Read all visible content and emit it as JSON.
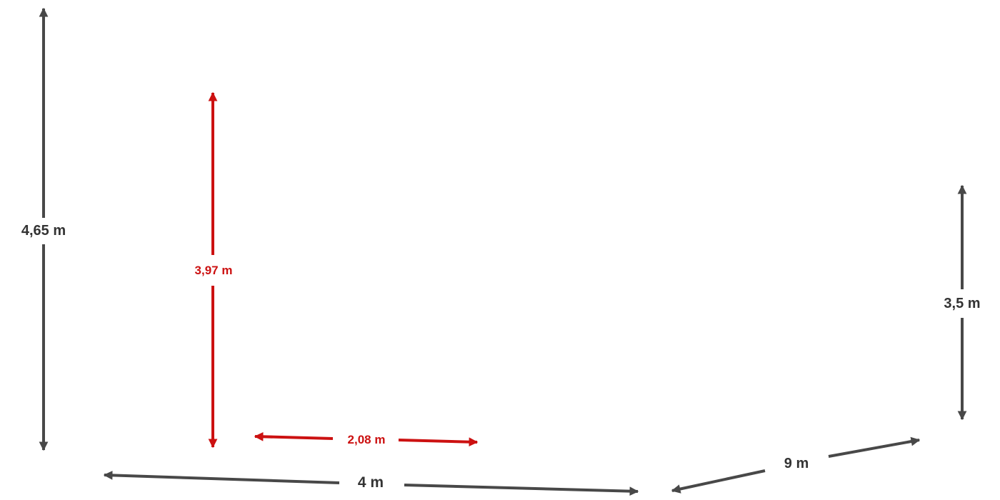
{
  "colors": {
    "background": "#ffffff",
    "primary_dimension": "#484848",
    "highlight_dimension": "#cc1111"
  },
  "dimensions": {
    "total_height": {
      "label": "4,65 m"
    },
    "inner_height": {
      "label": "3,97 m"
    },
    "inner_width": {
      "label": "2,08 m"
    },
    "right_height": {
      "label": "3,5 m"
    },
    "front_length": {
      "label": "4 m"
    },
    "side_depth": {
      "label": "9 m"
    }
  }
}
